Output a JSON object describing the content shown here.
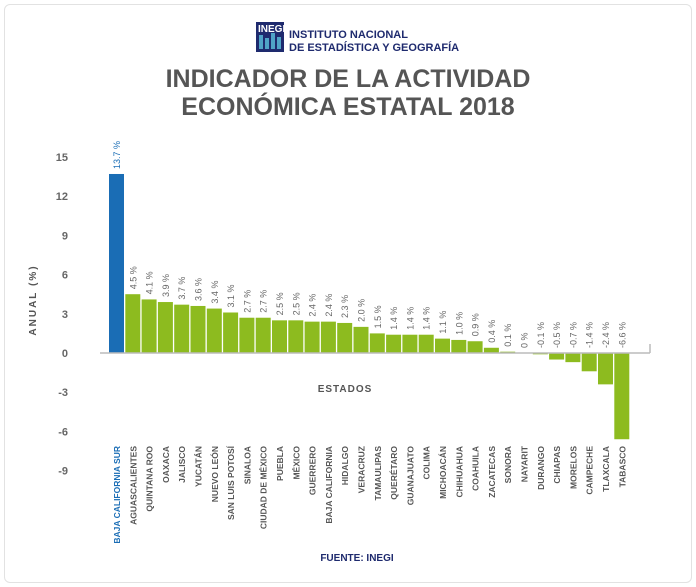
{
  "logo": {
    "mark": "INEGI",
    "line1": "INSTITUTO NACIONAL",
    "line2": "DE ESTADÍSTICA Y GEOGRAFÍA",
    "color": "#1e2a6e"
  },
  "title": {
    "line1": "INDICADOR DE LA ACTIVIDAD",
    "line2": "ECONÓMICA ESTATAL 2018"
  },
  "source": "FUENTE: INEGI",
  "chart_data": {
    "type": "bar",
    "xlabel": "ESTADOS",
    "ylabel": "ANUAL (%)",
    "ylim": [
      -9,
      15
    ],
    "yticks": [
      15,
      12,
      9,
      6,
      3,
      0,
      -3,
      -6,
      -9
    ],
    "grid": false,
    "highlight_color": "#1a6db5",
    "bar_color": "#8dbb1f",
    "categories": [
      "BAJA CALIFORNIA SUR",
      "AGUASCALIENTES",
      "QUINTANA ROO",
      "OAXACA",
      "JALISCO",
      "YUCATÁN",
      "NUEVO LEÓN",
      "SAN LUIS POTOSÍ",
      "SINALOA",
      "CIUDAD DE MÉXICO",
      "PUEBLA",
      "MÉXICO",
      "GUERRERO",
      "BAJA CALIFORNIA",
      "HIDALGO",
      "VERACRUZ",
      "TAMAULIPAS",
      "QUERÉTARO",
      "GUANAJUATO",
      "COLIMA",
      "MICHOACÁN",
      "CHIHUAHUA",
      "COAHUILA",
      "ZACATECAS",
      "SONORA",
      "NAYARIT",
      "DURANGO",
      "CHIAPAS",
      "MORELOS",
      "CAMPECHE",
      "TLAXCALA",
      "TABASCO"
    ],
    "values": [
      13.7,
      4.5,
      4.1,
      3.9,
      3.7,
      3.6,
      3.4,
      3.1,
      2.7,
      2.7,
      2.5,
      2.5,
      2.4,
      2.4,
      2.3,
      2.0,
      1.5,
      1.4,
      1.4,
      1.4,
      1.1,
      1.0,
      0.9,
      0.4,
      0.1,
      0,
      -0.1,
      -0.5,
      -0.7,
      -1.4,
      -2.4,
      -6.6
    ],
    "data_labels": [
      "13.7 %",
      "4.5 %",
      "4.1 %",
      "3.9 %",
      "3.7 %",
      "3.6 %",
      "3.4 %",
      "3.1 %",
      "2.7 %",
      "2.7 %",
      "2.5 %",
      "2.5 %",
      "2.4 %",
      "2.4 %",
      "2.3 %",
      "2.0 %",
      "1.5 %",
      "1.4 %",
      "1.4 %",
      "1.4 %",
      "1.1 %",
      "1.0 %",
      "0.9 %",
      "0.4 %",
      "0.1 %",
      "0 %",
      "-0.1 %",
      "-0.5 %",
      "-0.7 %",
      "-1.4 %",
      "-2.4 %",
      "-6.6 %"
    ]
  }
}
